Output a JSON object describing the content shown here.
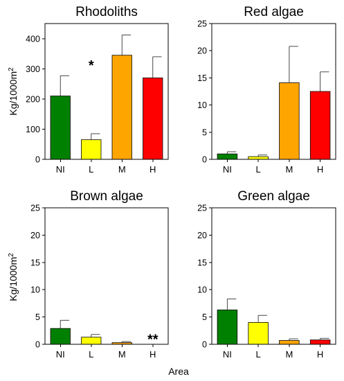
{
  "figure": {
    "ylabel": "Kg/1000m",
    "ylabel_sup": "2",
    "xlabel": "Area"
  },
  "chart_data": [
    {
      "type": "bar",
      "title": "Rhodoliths",
      "categories": [
        "NI",
        "L",
        "M",
        "H"
      ],
      "values": [
        210,
        65,
        345,
        270
      ],
      "errors": [
        67,
        20,
        67,
        70
      ],
      "colors": [
        "#008000",
        "#ffff00",
        "#ffa500",
        "#ff0000"
      ],
      "ylim": [
        0,
        450
      ],
      "yticks": [
        0,
        100,
        200,
        300,
        400
      ],
      "annotations": [
        {
          "text": "*",
          "category": "L",
          "y": 310
        }
      ]
    },
    {
      "type": "bar",
      "title": "Red algae",
      "categories": [
        "NI",
        "L",
        "M",
        "H"
      ],
      "values": [
        1.0,
        0.5,
        14.1,
        12.5
      ],
      "errors": [
        0.4,
        0.3,
        6.7,
        3.6
      ],
      "colors": [
        "#008000",
        "#ffff00",
        "#ffa500",
        "#ff0000"
      ],
      "ylim": [
        0,
        25
      ],
      "yticks": [
        0,
        5,
        10,
        15,
        20,
        25
      ],
      "annotations": []
    },
    {
      "type": "bar",
      "title": "Brown algae",
      "categories": [
        "NI",
        "L",
        "M",
        "H"
      ],
      "values": [
        2.9,
        1.3,
        0.3,
        0.0
      ],
      "errors": [
        1.5,
        0.5,
        0.2,
        0.0
      ],
      "colors": [
        "#008000",
        "#ffff00",
        "#ffa500",
        "#ff0000"
      ],
      "ylim": [
        0,
        25
      ],
      "yticks": [
        0,
        5,
        10,
        15,
        20,
        25
      ],
      "annotations": [
        {
          "text": "**",
          "category": "H",
          "y": 0.8
        }
      ]
    },
    {
      "type": "bar",
      "title": "Green algae",
      "categories": [
        "NI",
        "L",
        "M",
        "H"
      ],
      "values": [
        6.3,
        4.0,
        0.7,
        0.8
      ],
      "errors": [
        2.0,
        1.3,
        0.3,
        0.3
      ],
      "colors": [
        "#008000",
        "#ffff00",
        "#ffa500",
        "#ff0000"
      ],
      "ylim": [
        0,
        25
      ],
      "yticks": [
        0,
        5,
        10,
        15,
        20,
        25
      ],
      "annotations": []
    }
  ]
}
